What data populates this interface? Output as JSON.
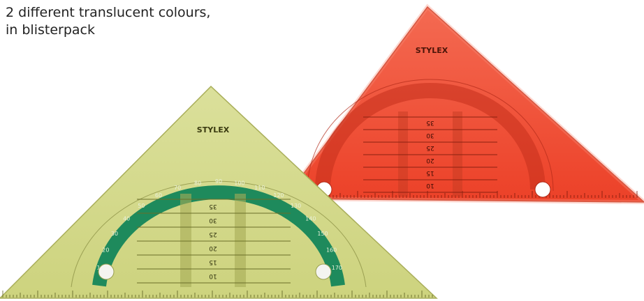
{
  "caption": {
    "line1": "2 different translucent colours,",
    "line2": "in blisterpack"
  },
  "products": [
    {
      "name": "red-set-square",
      "brand": "STYLEX",
      "color": "#f0503a",
      "dark": "#b82a18"
    },
    {
      "name": "green-set-square",
      "brand": "STYLEX",
      "color": "#d2d98a",
      "dark": "#1f8a5c"
    }
  ],
  "scale_labels": [
    "10",
    "15",
    "20",
    "25",
    "30",
    "35"
  ],
  "protractor_labels": [
    "10",
    "20",
    "30",
    "40",
    "50",
    "60",
    "70",
    "80",
    "90",
    "100",
    "110",
    "120",
    "130",
    "140",
    "150",
    "160",
    "170"
  ]
}
